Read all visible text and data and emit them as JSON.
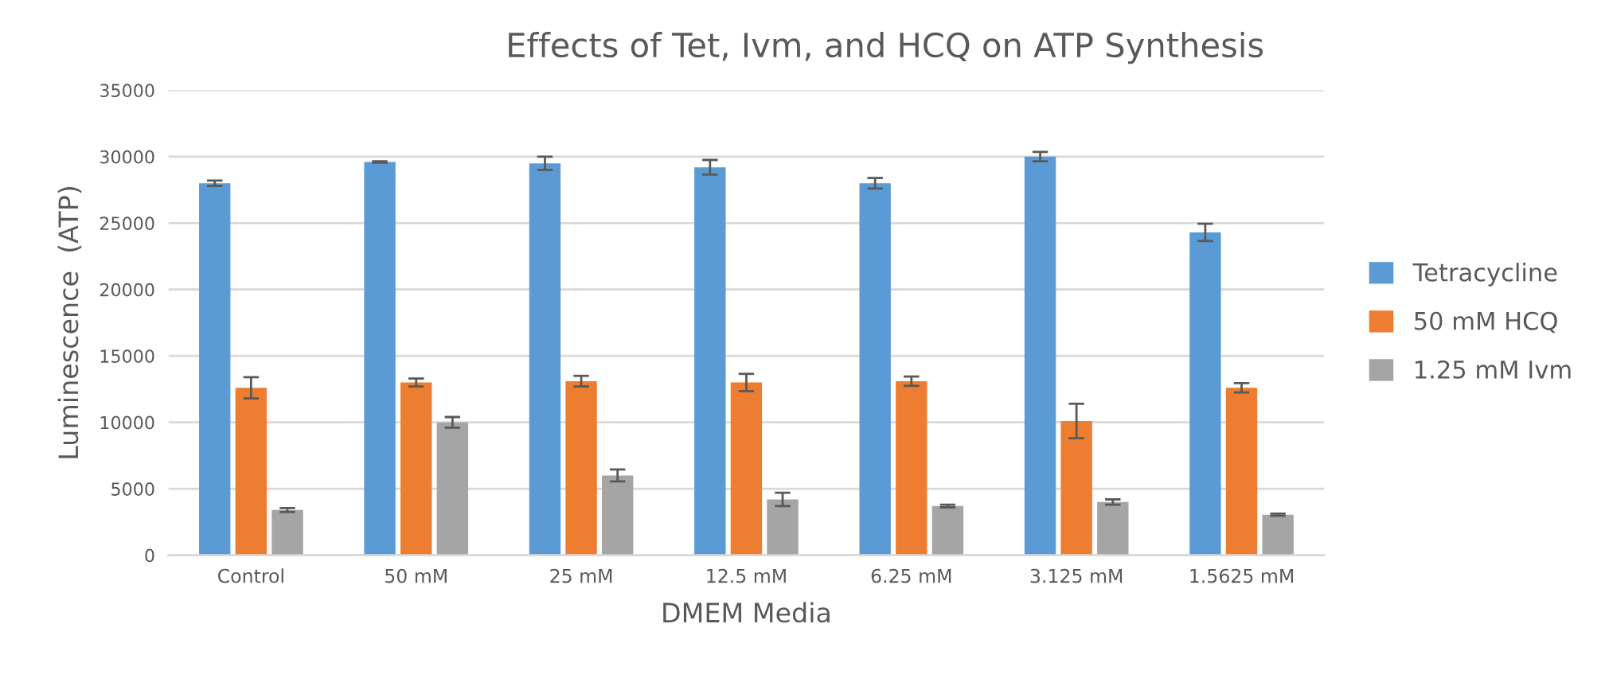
{
  "chart_data": {
    "type": "bar",
    "title": "Effects of Tet, Ivm, and HCQ on ATP Synthesis",
    "xlabel": "DMEM Media",
    "ylabel": "Luminescence  (ATP)",
    "categories": [
      "Control",
      "50 mM",
      "25 mM",
      "12.5 mM",
      "6.25 mM",
      "3.125 mM",
      "1.5625 mM"
    ],
    "series": [
      {
        "name": "Tetracycline",
        "color": "#5b9bd5",
        "values": [
          28000,
          29600,
          29500,
          29200,
          28000,
          30000,
          24300
        ],
        "errors": [
          200,
          50,
          500,
          550,
          400,
          350,
          650
        ]
      },
      {
        "name": "50 mM HCQ",
        "color": "#ed7d31",
        "values": [
          12600,
          13000,
          13100,
          13000,
          13100,
          10100,
          12600
        ],
        "errors": [
          800,
          300,
          400,
          650,
          350,
          1300,
          350
        ]
      },
      {
        "name": "1.25 mM Ivm",
        "color": "#a5a5a5",
        "values": [
          3400,
          10000,
          6000,
          4200,
          3700,
          4000,
          3050
        ],
        "errors": [
          150,
          400,
          450,
          500,
          100,
          200,
          80
        ]
      }
    ],
    "ylim": [
      0,
      35000
    ],
    "yticks": [
      0,
      5000,
      10000,
      15000,
      20000,
      25000,
      30000,
      35000
    ],
    "grid": "y",
    "legend": "right"
  }
}
